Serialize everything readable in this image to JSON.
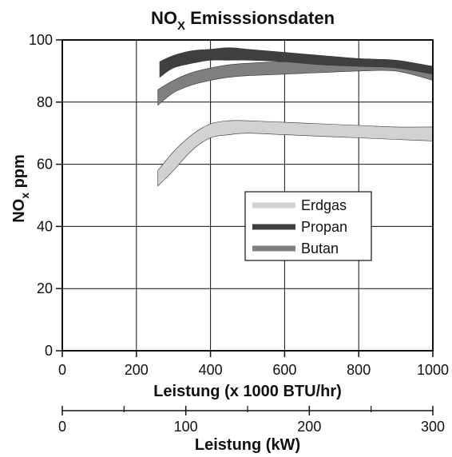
{
  "chart_data": {
    "type": "area",
    "title_main": "NO",
    "title_sub": "X",
    "title_rest": " Emisssionsdaten",
    "ylabel_main": "NO",
    "ylabel_sub": "x",
    "ylabel_rest": " ppm",
    "xlabel": "Leistung (x 1000 BTU/hr)",
    "x2label": "Leistung (kW)",
    "xlim": [
      0,
      1000
    ],
    "ylim": [
      0,
      100
    ],
    "x_ticks": [
      0,
      200,
      400,
      600,
      800,
      1000
    ],
    "y_ticks": [
      0,
      20,
      40,
      60,
      80,
      100
    ],
    "x2lim": [
      0,
      300
    ],
    "x2_ticks": [
      0,
      100,
      200,
      300
    ],
    "x2_minor_ticks": [
      50,
      150,
      250
    ],
    "grid": true,
    "legend_position": "center-right",
    "series": [
      {
        "name": "Erdgas",
        "color": "#d2d2d2",
        "x": [
          258,
          300,
          350,
          400,
          450,
          500,
          600,
          700,
          800,
          900,
          1000
        ],
        "upper": [
          58,
          64,
          69.5,
          73,
          74,
          74,
          73.5,
          73,
          72.5,
          72,
          72
        ],
        "lower": [
          53,
          58,
          64.5,
          68.5,
          69.5,
          70,
          69.5,
          69,
          68.5,
          68,
          67.5
        ]
      },
      {
        "name": "Butan",
        "color": "#7f7f7f",
        "x": [
          258,
          300,
          350,
          400,
          450,
          500,
          600,
          700,
          800,
          900,
          1000
        ],
        "upper": [
          84,
          87,
          89.5,
          91,
          92,
          92.5,
          93,
          93,
          93,
          92.5,
          90
        ],
        "lower": [
          79,
          83,
          85.5,
          87,
          88,
          88.5,
          89,
          89.5,
          90,
          90,
          87
        ]
      },
      {
        "name": "Propan",
        "color": "#3f3f3f",
        "x": [
          263,
          300,
          350,
          400,
          450,
          500,
          600,
          700,
          800,
          900,
          1000
        ],
        "upper": [
          93,
          95,
          96.5,
          97,
          97.5,
          97,
          96,
          95,
          94,
          93.5,
          91.5
        ],
        "lower": [
          88,
          91,
          92.5,
          93.5,
          93.5,
          93.5,
          93,
          92,
          91.5,
          91,
          89
        ]
      }
    ],
    "legend": [
      "Erdgas",
      "Propan",
      "Butan"
    ]
  }
}
